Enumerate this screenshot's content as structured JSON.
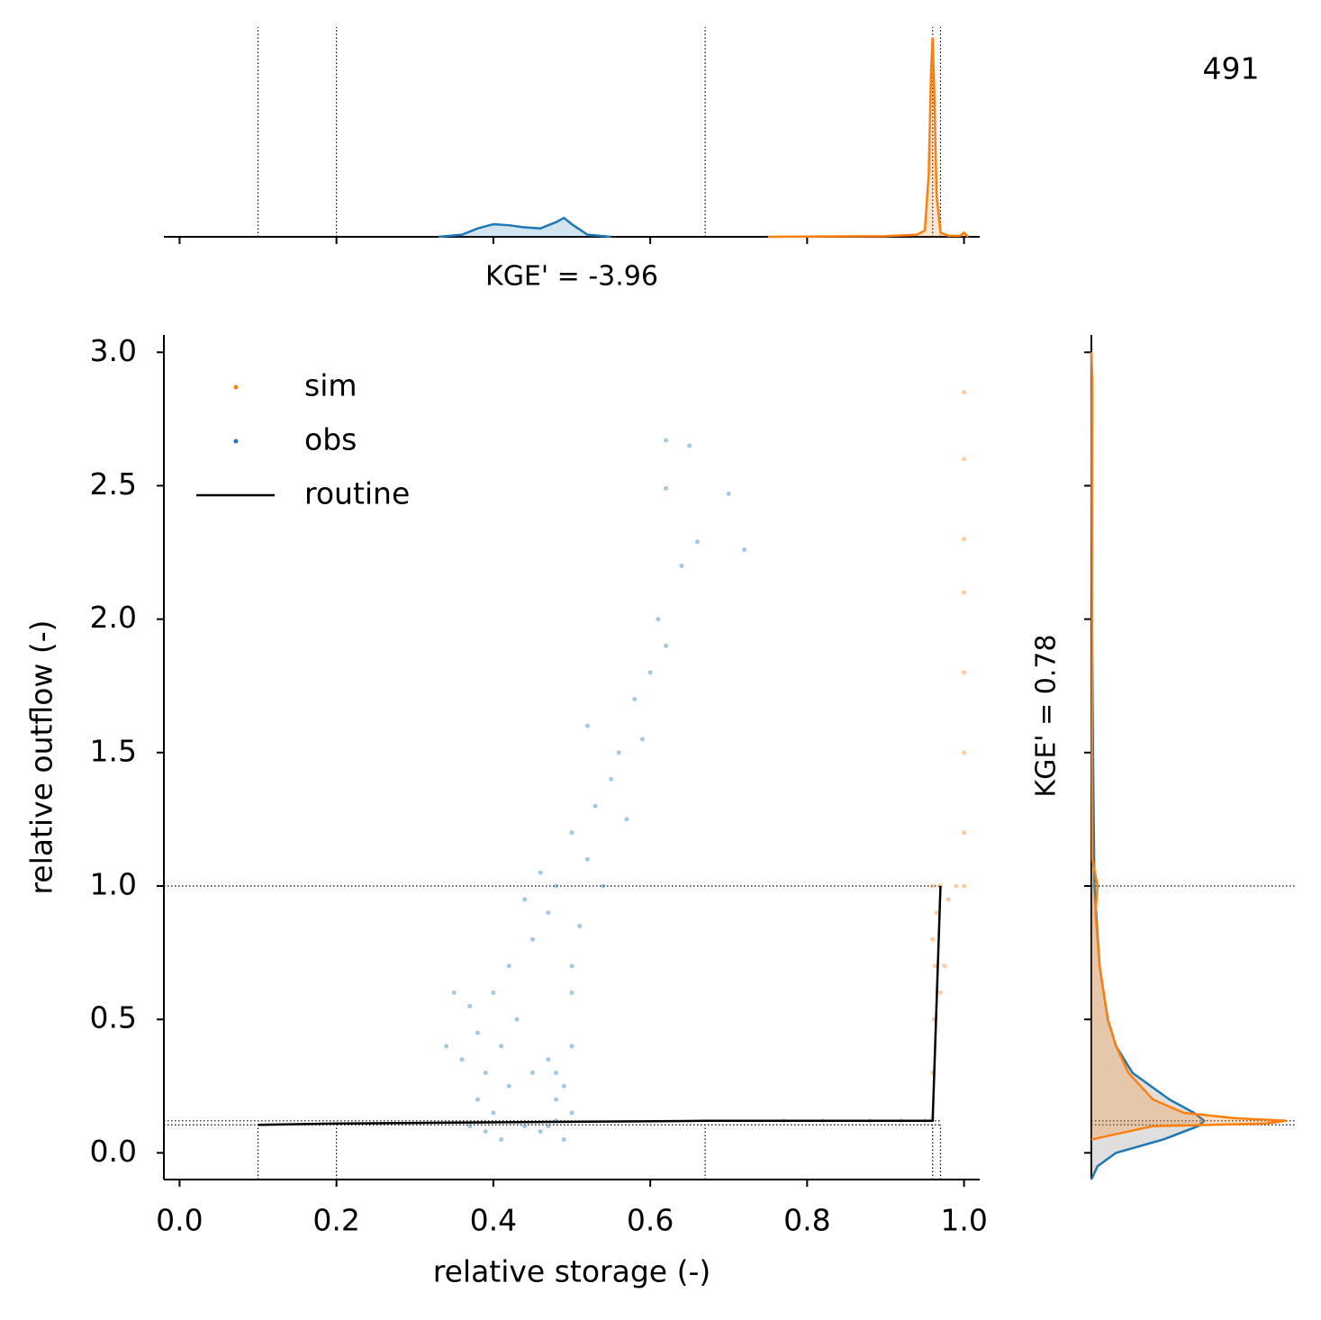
{
  "chart_data": {
    "type": "scatter",
    "annotation": "491",
    "xlabel": "relative storage (-)",
    "ylabel": "relative outflow (-)",
    "xlim": [
      -0.02,
      1.02
    ],
    "ylim": [
      -0.1,
      3.065
    ],
    "xticks": [
      {
        "value": 0,
        "label": "0.0"
      },
      0.2,
      0.4,
      0.6,
      0.8,
      {
        "value": 1,
        "label": "1.0"
      }
    ],
    "yticks": [
      {
        "value": 0,
        "label": "0.0"
      },
      0.5,
      {
        "value": 1,
        "label": "1.0"
      },
      1.5,
      {
        "value": 2,
        "label": "2.0"
      },
      2.5,
      {
        "value": 3,
        "label": "3.0"
      }
    ],
    "legend": "upper left",
    "ref_x": [
      0.1,
      0.2,
      0.67,
      0.96,
      0.97
    ],
    "ref_y": [
      1.0,
      0.12,
      0.105
    ],
    "series": [
      {
        "name": "sim",
        "kind": "scatter",
        "color": "#ff7f0e",
        "x": [
          0.77,
          0.82,
          0.88,
          0.92,
          0.95,
          0.96,
          0.96,
          0.962,
          0.963,
          0.965,
          0.96,
          0.97,
          0.98,
          0.99,
          1.0,
          1.0,
          1.0,
          1.0,
          1.0,
          1.0,
          1.0,
          1.0,
          0.96,
          0.97,
          0.975
        ],
        "values": [
          0.12,
          0.12,
          0.12,
          0.12,
          0.12,
          0.13,
          0.3,
          0.5,
          0.7,
          0.9,
          1.0,
          1.0,
          0.95,
          1.0,
          1.0,
          1.2,
          1.5,
          1.8,
          2.1,
          2.3,
          2.6,
          2.85,
          0.8,
          0.6,
          0.7
        ]
      },
      {
        "name": "obs",
        "kind": "scatter",
        "color": "#1f77b4",
        "x": [
          0.37,
          0.38,
          0.39,
          0.4,
          0.41,
          0.42,
          0.43,
          0.36,
          0.38,
          0.4,
          0.44,
          0.39,
          0.42,
          0.37,
          0.41,
          0.45,
          0.47,
          0.48,
          0.49,
          0.48,
          0.47,
          0.5,
          0.49,
          0.46,
          0.48,
          0.5,
          0.45,
          0.47,
          0.44,
          0.5,
          0.48,
          0.52,
          0.5,
          0.53,
          0.55,
          0.51,
          0.46,
          0.54,
          0.56,
          0.52,
          0.58,
          0.6,
          0.57,
          0.62,
          0.59,
          0.64,
          0.61,
          0.66,
          0.62,
          0.65,
          0.7,
          0.72,
          0.62,
          0.35,
          0.34,
          0.5
        ],
        "values": [
          0.1,
          0.2,
          0.3,
          0.15,
          0.4,
          0.25,
          0.5,
          0.35,
          0.45,
          0.6,
          0.1,
          0.08,
          0.7,
          0.55,
          0.05,
          0.3,
          0.1,
          0.2,
          0.05,
          0.3,
          0.35,
          0.15,
          0.25,
          0.08,
          0.12,
          0.4,
          0.8,
          0.9,
          0.95,
          0.7,
          1.0,
          1.1,
          1.2,
          1.3,
          1.4,
          0.85,
          1.05,
          1.0,
          1.5,
          1.6,
          1.7,
          1.8,
          1.25,
          1.9,
          1.55,
          2.2,
          2.0,
          2.29,
          2.49,
          2.65,
          2.47,
          2.26,
          2.67,
          0.6,
          0.4,
          0.6
        ]
      },
      {
        "name": "routine",
        "kind": "line",
        "color": "#000000",
        "x": [
          0.1,
          0.2,
          0.67,
          0.96,
          0.97
        ],
        "values": [
          0.105,
          0.11,
          0.12,
          0.12,
          1.0
        ]
      }
    ],
    "marginal_top": {
      "annotation": "KGE' = -3.96",
      "ylim": [
        0,
        100
      ],
      "series": [
        {
          "x": [
            0.33,
            0.36,
            0.38,
            0.4,
            0.42,
            0.44,
            0.46,
            0.48,
            0.49,
            0.5,
            0.52,
            0.55
          ],
          "values": [
            0,
            1,
            4,
            6,
            5.5,
            4.5,
            4,
            7,
            9,
            6,
            1,
            0
          ]
        },
        {
          "x": [
            0.75,
            0.9,
            0.94,
            0.95,
            0.955,
            0.958,
            0.96,
            0.962,
            0.965,
            0.97,
            0.98,
            0.995,
            1.0,
            1.005
          ],
          "values": [
            0,
            0.3,
            1,
            3,
            30,
            80,
            95,
            70,
            20,
            2,
            0.5,
            0.5,
            2,
            0
          ]
        }
      ]
    },
    "marginal_right": {
      "annotation": "KGE' = 0.78",
      "xlim": [
        0,
        100
      ],
      "series": [
        {
          "y": [
            -0.1,
            -0.05,
            0,
            0.05,
            0.1,
            0.12,
            0.15,
            0.2,
            0.3,
            0.4,
            0.5,
            0.7,
            1.0,
            1.5,
            2,
            3
          ],
          "values": [
            0,
            3,
            12,
            35,
            52,
            55,
            50,
            38,
            20,
            12,
            8,
            4,
            1.5,
            0.8,
            0.3,
            0
          ]
        },
        {
          "y": [
            0.05,
            0.1,
            0.11,
            0.12,
            0.13,
            0.15,
            0.2,
            0.3,
            0.4,
            0.5,
            0.7,
            0.9,
            1.0,
            1.1,
            1.5,
            2.9,
            3
          ],
          "values": [
            0,
            30,
            85,
            95,
            70,
            45,
            30,
            18,
            12,
            8,
            4,
            2,
            3,
            0.5,
            0.3,
            0.5,
            0
          ]
        }
      ]
    }
  }
}
